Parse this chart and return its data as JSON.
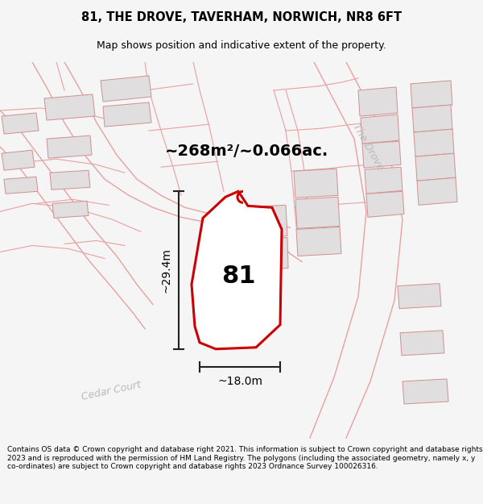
{
  "title": "81, THE DROVE, TAVERHAM, NORWICH, NR8 6FT",
  "subtitle": "Map shows position and indicative extent of the property.",
  "area_label": "~268m²/~0.066ac.",
  "property_number": "81",
  "dim_width": "~18.0m",
  "dim_height": "~29.4m",
  "road_label_cedar": "Cedar Court",
  "road_label_drove": "The Drove",
  "footer": "Contains OS data © Crown copyright and database right 2021. This information is subject to Crown copyright and database rights 2023 and is reproduced with the permission of HM Land Registry. The polygons (including the associated geometry, namely x, y co-ordinates) are subject to Crown copyright and database rights 2023 Ordnance Survey 100026316.",
  "bg_color": "#f5f5f5",
  "map_bg": "#f9f7f7",
  "plot_face": "#ffffff",
  "plot_edge": "#cc0000",
  "outline_color": "#e8a0a0",
  "bld_face": "#e0dede",
  "bld_edge": "#d09090",
  "dim_color": "#222222",
  "road_text_color": "#c0b8b8",
  "title_fs": 10.5,
  "subtitle_fs": 9,
  "footer_fs": 6.5,
  "area_fs": 14,
  "num_fs": 22,
  "dim_fs": 10,
  "road_fs": 9
}
